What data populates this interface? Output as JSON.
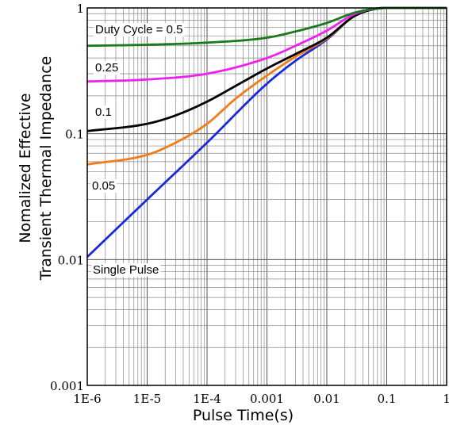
{
  "chart_data": {
    "type": "line",
    "xlabel": "Pulse Time(s)",
    "ylabel": [
      "Nomalized Effective",
      "Transient Thermal Impedance"
    ],
    "x_scale": "log",
    "y_scale": "log",
    "xlim": [
      1e-06,
      1
    ],
    "ylim": [
      0.001,
      1
    ],
    "grid": true,
    "x_tick_labels": [
      "1E-6",
      "1E-5",
      "1E-4",
      "0.001",
      "0.01",
      "0.1",
      "1"
    ],
    "y_tick_labels": [
      "0.001",
      "0.01",
      "0.1",
      "1"
    ],
    "series": [
      {
        "name": "Duty Cycle = 0.5",
        "color": "#1a7a1a",
        "x": [
          1e-06,
          1e-05,
          0.0001,
          0.001,
          0.003,
          0.01,
          0.03,
          0.1,
          1
        ],
        "y": [
          0.5,
          0.51,
          0.53,
          0.58,
          0.65,
          0.76,
          0.92,
          1.0,
          1.0
        ]
      },
      {
        "name": "0.25",
        "color": "#ee22ee",
        "x": [
          1e-06,
          1e-05,
          0.0001,
          0.001,
          0.003,
          0.01,
          0.03,
          0.1,
          1
        ],
        "y": [
          0.26,
          0.27,
          0.3,
          0.4,
          0.5,
          0.66,
          0.9,
          1.0,
          1.0
        ]
      },
      {
        "name": "0.1",
        "color": "#000000",
        "x": [
          1e-06,
          1e-05,
          3e-05,
          0.0001,
          0.0003,
          0.001,
          0.003,
          0.01,
          0.03,
          0.1,
          1
        ],
        "y": [
          0.105,
          0.12,
          0.14,
          0.18,
          0.24,
          0.33,
          0.43,
          0.58,
          0.87,
          1.0,
          1.0
        ]
      },
      {
        "name": "0.05",
        "color": "#f07c1a",
        "x": [
          1e-06,
          1e-05,
          3e-05,
          0.0001,
          0.0003,
          0.001,
          0.003,
          0.01,
          0.03,
          0.1,
          1
        ],
        "y": [
          0.057,
          0.068,
          0.085,
          0.12,
          0.19,
          0.29,
          0.41,
          0.57,
          0.87,
          1.0,
          1.0
        ]
      },
      {
        "name": "Single Pulse",
        "color": "#1a2adb",
        "x": [
          1e-06,
          1e-05,
          0.0001,
          0.001,
          0.003,
          0.01,
          0.03,
          0.1,
          1
        ],
        "y": [
          0.0105,
          0.03,
          0.085,
          0.25,
          0.38,
          0.56,
          0.87,
          1.0,
          1.0
        ]
      }
    ],
    "annotations": [
      {
        "text": "Duty Cycle = 0.5",
        "series": 0
      },
      {
        "text": "0.25",
        "series": 1
      },
      {
        "text": "0.1",
        "series": 2
      },
      {
        "text": "0.05",
        "series": 3
      },
      {
        "text": "Single Pulse",
        "series": 4
      }
    ]
  }
}
